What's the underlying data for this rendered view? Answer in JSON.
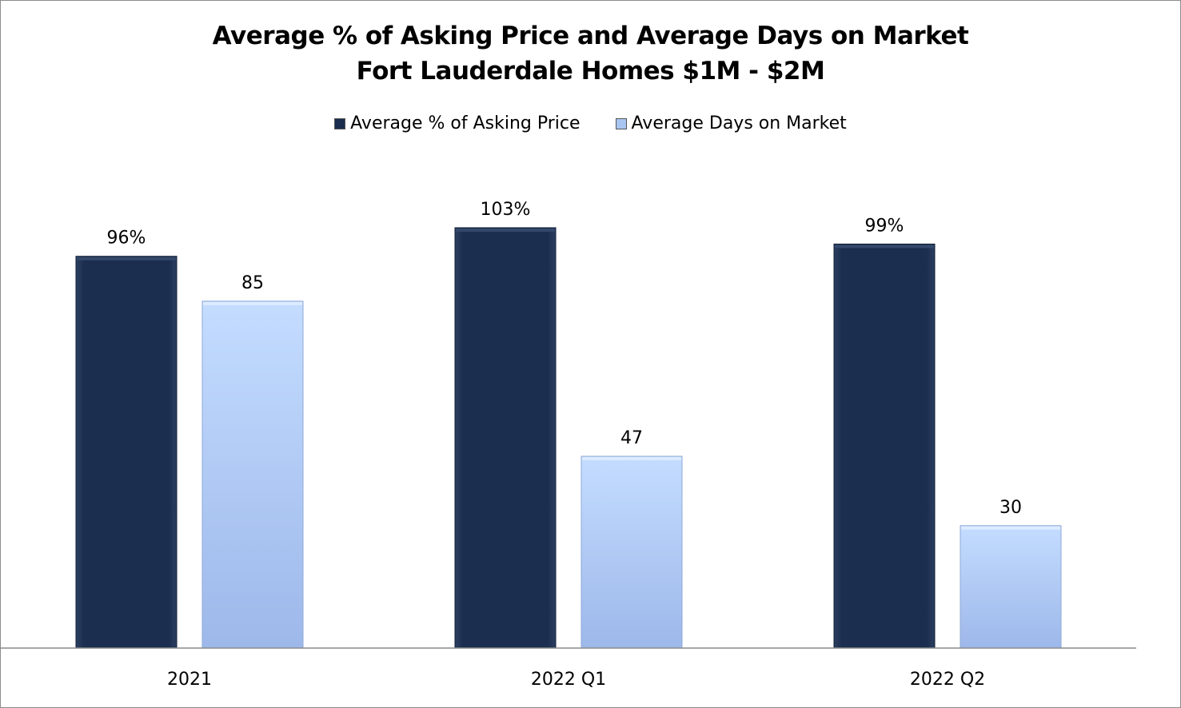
{
  "chart_data": {
    "type": "bar",
    "title": "Average % of Asking Price and Average Days on Market",
    "subtitle": "Fort Lauderdale Homes $1M - $2M",
    "categories": [
      "2021",
      "2022 Q1",
      "2022 Q2"
    ],
    "series": [
      {
        "name": "Average % of Asking Price",
        "values": [
          96,
          103,
          99
        ],
        "labels": [
          "96%",
          "103%",
          "99%"
        ],
        "color": "#1a2d4d"
      },
      {
        "name": "Average Days on Market",
        "values": [
          85,
          47,
          30
        ],
        "labels": [
          "85",
          "47",
          "30"
        ],
        "color": "#a9c6f2"
      }
    ],
    "legend_position": "top",
    "grid": false,
    "y_axis_visible": false
  }
}
